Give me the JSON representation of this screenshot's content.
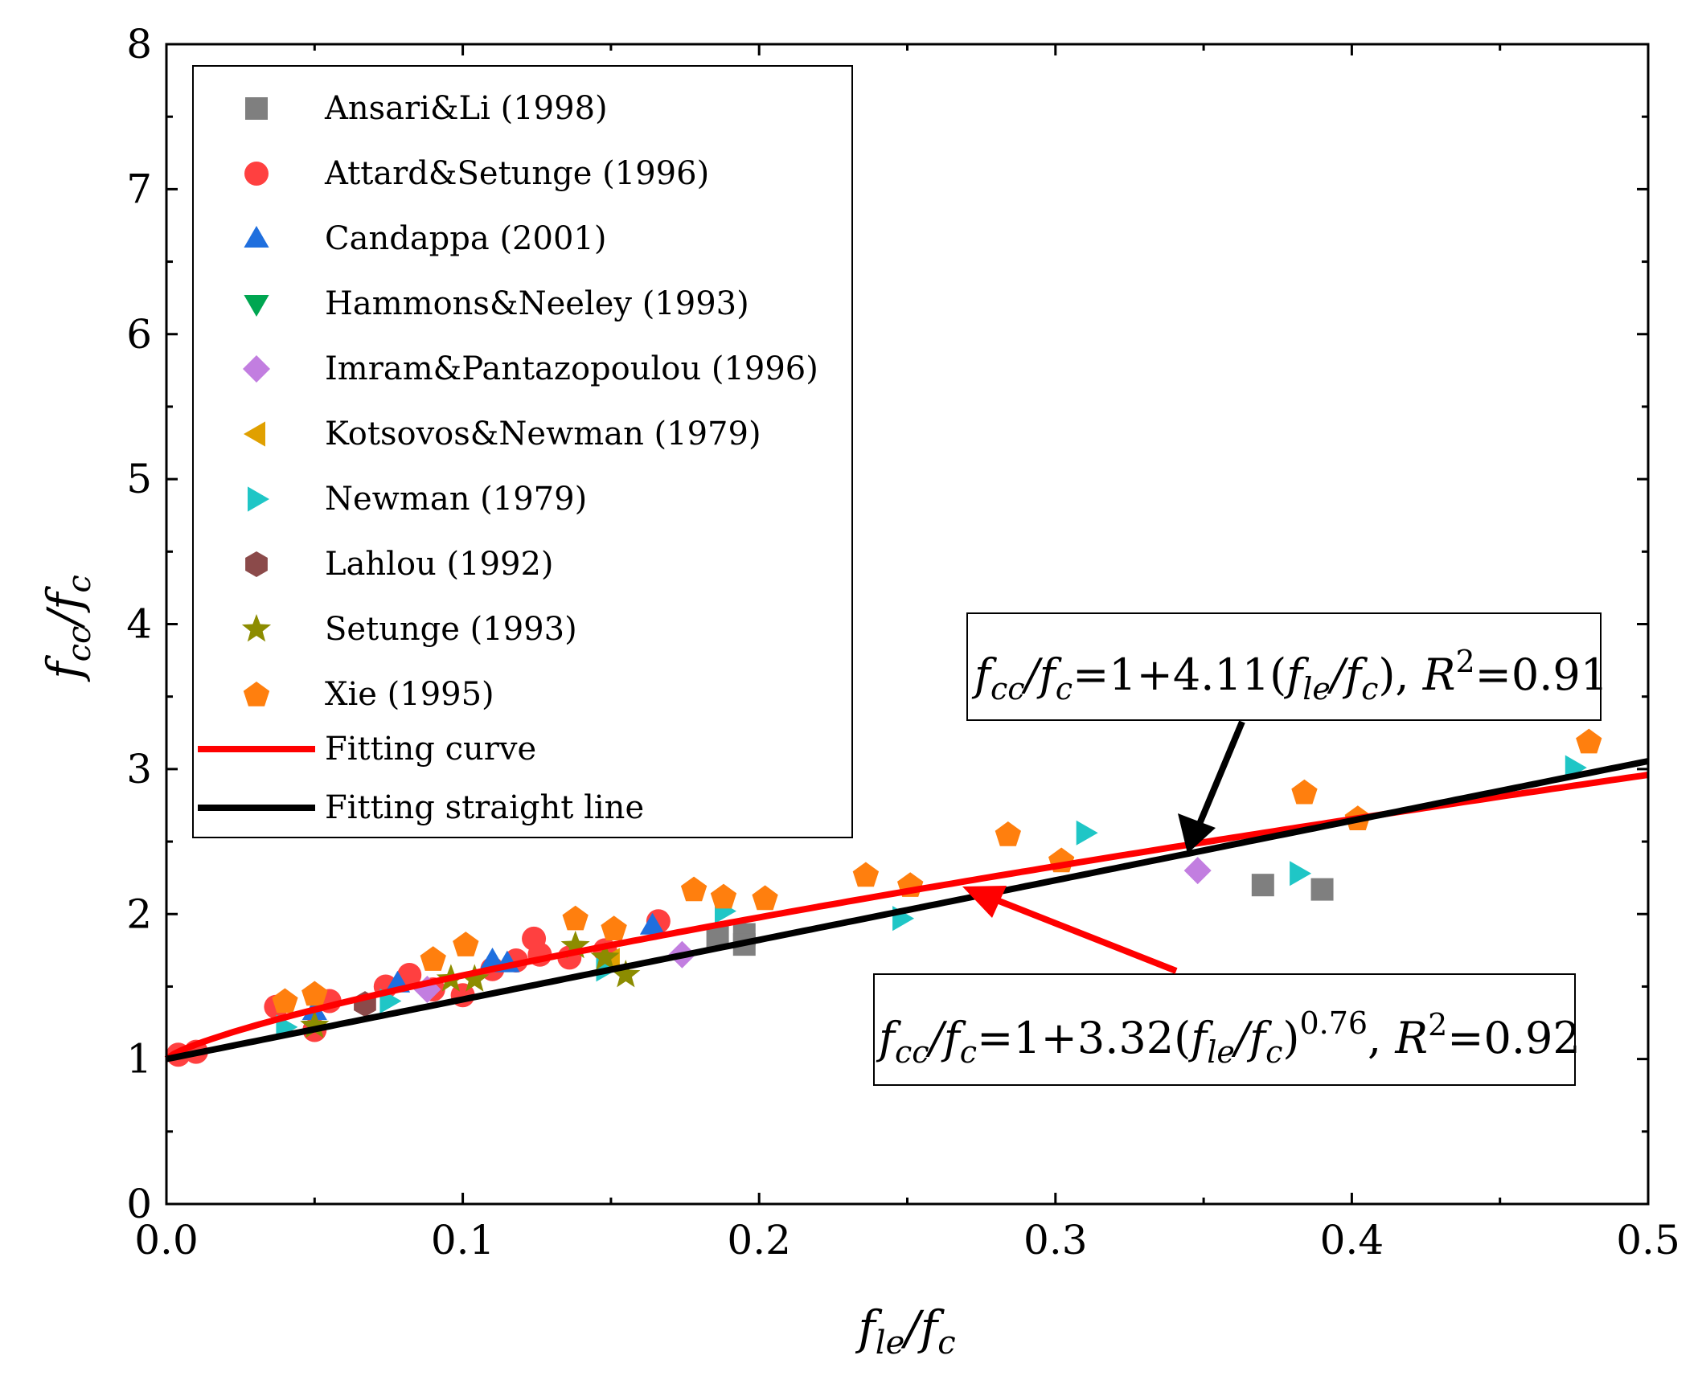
{
  "chart_data": {
    "type": "scatter",
    "title": "",
    "xlabel": "f_le/f_c",
    "ylabel": "f_cc/f_c",
    "xlim": [
      0,
      0.5
    ],
    "ylim": [
      0,
      8
    ],
    "xticks": [
      "0.0",
      "0.1",
      "0.2",
      "0.3",
      "0.4",
      "0.5"
    ],
    "yticks": [
      "0",
      "1",
      "2",
      "3",
      "4",
      "5",
      "6",
      "7",
      "8"
    ],
    "legend_position": "top-left",
    "series": [
      {
        "name": "Ansari&Li (1998)",
        "marker": "square",
        "color": "#7f7f7f",
        "points": [
          [
            0.186,
            1.84
          ],
          [
            0.195,
            1.86
          ],
          [
            0.195,
            1.79
          ],
          [
            0.37,
            2.2
          ],
          [
            0.39,
            2.17
          ]
        ]
      },
      {
        "name": "Attard&Setunge (1996)",
        "marker": "circle",
        "color": "#ff4040",
        "points": [
          [
            0.004,
            1.03
          ],
          [
            0.01,
            1.05
          ],
          [
            0.037,
            1.36
          ],
          [
            0.05,
            1.2
          ],
          [
            0.055,
            1.4
          ],
          [
            0.074,
            1.5
          ],
          [
            0.082,
            1.58
          ],
          [
            0.09,
            1.48
          ],
          [
            0.1,
            1.44
          ],
          [
            0.11,
            1.62
          ],
          [
            0.118,
            1.68
          ],
          [
            0.124,
            1.83
          ],
          [
            0.126,
            1.72
          ],
          [
            0.136,
            1.7
          ],
          [
            0.148,
            1.75
          ],
          [
            0.166,
            1.95
          ]
        ]
      },
      {
        "name": "Candappa (2001)",
        "marker": "triangle-up",
        "color": "#1f6fde",
        "points": [
          [
            0.05,
            1.33
          ],
          [
            0.078,
            1.52
          ],
          [
            0.11,
            1.68
          ],
          [
            0.115,
            1.66
          ],
          [
            0.164,
            1.92
          ]
        ]
      },
      {
        "name": "Hammons&Neeley (1993)",
        "marker": "triangle-down",
        "color": "#00a651",
        "points": []
      },
      {
        "name": "Imram&Pantazopoulou (1996)",
        "marker": "diamond",
        "color": "#c27ee0",
        "points": [
          [
            0.088,
            1.48
          ],
          [
            0.174,
            1.72
          ],
          [
            0.348,
            2.3
          ]
        ]
      },
      {
        "name": "Kotsovos&Newman (1979)",
        "marker": "triangle-left",
        "color": "#e0a000",
        "points": [
          [
            0.15,
            1.68
          ]
        ]
      },
      {
        "name": "Newman (1979)",
        "marker": "triangle-right",
        "color": "#1fc6c6",
        "points": [
          [
            0.04,
            1.22
          ],
          [
            0.075,
            1.4
          ],
          [
            0.148,
            1.62
          ],
          [
            0.188,
            2.02
          ],
          [
            0.248,
            1.97
          ],
          [
            0.31,
            2.56
          ],
          [
            0.382,
            2.28
          ],
          [
            0.475,
            3.01
          ]
        ]
      },
      {
        "name": "Lahlou (1992)",
        "marker": "hexagon",
        "color": "#8b4a4a",
        "points": [
          [
            0.067,
            1.38
          ]
        ]
      },
      {
        "name": "Setunge (1993)",
        "marker": "star",
        "color": "#8c8c00",
        "points": [
          [
            0.05,
            1.23
          ],
          [
            0.096,
            1.55
          ],
          [
            0.104,
            1.55
          ],
          [
            0.138,
            1.78
          ],
          [
            0.148,
            1.7
          ],
          [
            0.155,
            1.58
          ]
        ]
      },
      {
        "name": "Xie (1995)",
        "marker": "pentagon",
        "color": "#ff7f0e",
        "points": [
          [
            0.04,
            1.4
          ],
          [
            0.05,
            1.45
          ],
          [
            0.09,
            1.69
          ],
          [
            0.101,
            1.79
          ],
          [
            0.138,
            1.97
          ],
          [
            0.151,
            1.9
          ],
          [
            0.178,
            2.17
          ],
          [
            0.188,
            2.12
          ],
          [
            0.202,
            2.11
          ],
          [
            0.236,
            2.27
          ],
          [
            0.251,
            2.2
          ],
          [
            0.284,
            2.55
          ],
          [
            0.302,
            2.37
          ],
          [
            0.384,
            2.84
          ],
          [
            0.402,
            2.66
          ],
          [
            0.48,
            3.19
          ]
        ]
      }
    ],
    "lines": [
      {
        "name": "Fitting curve",
        "color": "#ff0000",
        "equation": "1+3.32*x^0.76"
      },
      {
        "name": "Fitting straight line",
        "color": "#000000",
        "equation": "1+4.11*x"
      }
    ],
    "annotations": [
      {
        "text": "f_cc/f_c=1+4.11(f_le/f_c), R^2=0.91",
        "arrow_color": "#000000",
        "points_to": [
          0.345,
          2.42
        ]
      },
      {
        "text": "f_cc/f_c=1+3.32(f_le/f_c)^0.76, R^2=0.92",
        "arrow_color": "#ff0000",
        "points_to": [
          0.268,
          2.2
        ]
      }
    ]
  }
}
